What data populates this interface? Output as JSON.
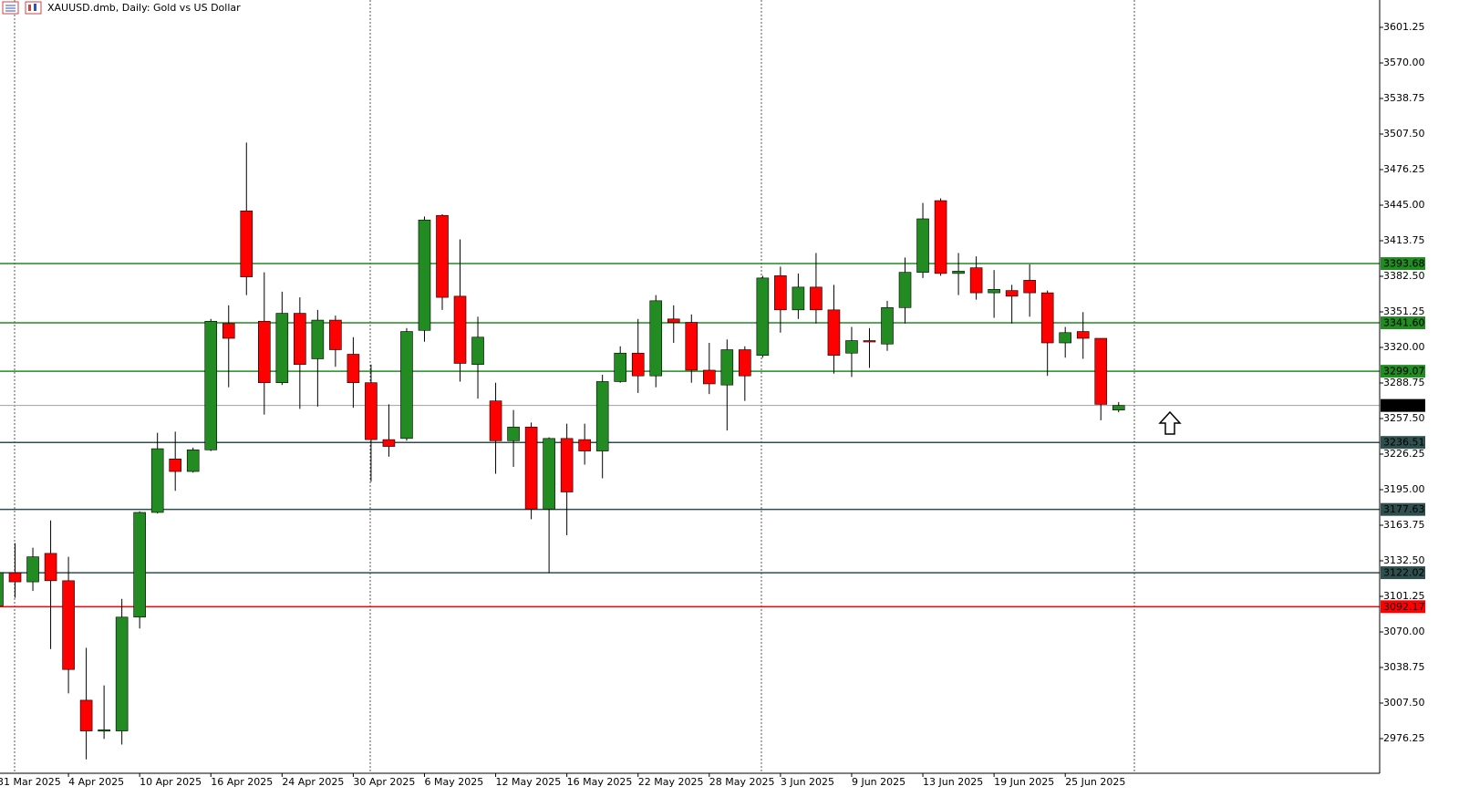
{
  "chart_data": {
    "type": "candlestick",
    "title": "XAUUSD.dmb, Daily:  Gold vs US Dollar",
    "categories": [
      "31 Mar 2025",
      null,
      null,
      null,
      "4 Apr 2025",
      null,
      null,
      null,
      "10 Apr 2025",
      null,
      null,
      null,
      "16 Apr 2025",
      null,
      null,
      null,
      "24 Apr 2025",
      null,
      null,
      null,
      "30 Apr 2025",
      null,
      null,
      null,
      "6 May 2025",
      null,
      null,
      null,
      "12 May 2025",
      null,
      null,
      null,
      "16 May 2025",
      null,
      null,
      null,
      "22 May 2025",
      null,
      null,
      null,
      "28 May 2025",
      null,
      null,
      null,
      "3 Jun 2025",
      null,
      null,
      null,
      "9 Jun 2025",
      null,
      null,
      null,
      "13 Jun 2025",
      null,
      null,
      null,
      "19 Jun 2025",
      null,
      null,
      null,
      "25 Jun 2025",
      null,
      null,
      null
    ],
    "open": [
      3093,
      3122,
      3114,
      3139,
      3115,
      3010,
      2983,
      2983,
      3083,
      3175,
      3222,
      3211,
      3230,
      3341,
      3440,
      3343,
      3289,
      3350,
      3310,
      3344,
      3314,
      3289,
      3239,
      3240,
      3335,
      3436,
      3365,
      3305,
      3273,
      3238,
      3250,
      3178,
      3240,
      3239,
      3229,
      3290,
      3315,
      3295,
      3345,
      3342,
      3300,
      3287,
      3318,
      3313,
      3383,
      3353,
      3373,
      3353,
      3315,
      3326,
      3323,
      3355,
      3386,
      3449,
      3385,
      3390,
      3368,
      3370,
      3379,
      3368,
      3324,
      3334,
      3328,
      3265
    ],
    "high": [
      3128,
      3148,
      3144,
      3168,
      3136,
      3056,
      3023,
      3099,
      3176,
      3245,
      3246,
      3232,
      3345,
      3357,
      3500,
      3386,
      3369,
      3364,
      3353,
      3348,
      3329,
      3305,
      3270,
      3337,
      3435,
      3437,
      3415,
      3347,
      3289,
      3265,
      3254,
      3241,
      3253,
      3253,
      3296,
      3321,
      3345,
      3366,
      3357,
      3349,
      3324,
      3327,
      3321,
      3383,
      3391,
      3385,
      3403,
      3375,
      3338,
      3337,
      3361,
      3399,
      3447,
      3451,
      3403,
      3400,
      3388,
      3375,
      3393,
      3370,
      3338,
      3351,
      3328,
      3272
    ],
    "low": [
      3085,
      3100,
      3106,
      3055,
      3016,
      2958,
      2976,
      2971,
      3073,
      3174,
      3194,
      3210,
      3229,
      3285,
      3366,
      3261,
      3287,
      3266,
      3268,
      3303,
      3267,
      3202,
      3224,
      3238,
      3325,
      3353,
      3290,
      3275,
      3209,
      3215,
      3169,
      3122,
      3155,
      3217,
      3205,
      3289,
      3280,
      3285,
      3324,
      3289,
      3279,
      3247,
      3273,
      3311,
      3333,
      3345,
      3341,
      3297,
      3294,
      3302,
      3317,
      3341,
      3381,
      3383,
      3366,
      3362,
      3346,
      3341,
      3347,
      3295,
      3311,
      3310,
      3256,
      3263
    ],
    "close": [
      3122,
      3114,
      3136,
      3115,
      3037,
      2983,
      2984,
      3083,
      3175,
      3231,
      3211,
      3230,
      3343,
      3328,
      3382,
      3289,
      3350,
      3305,
      3344,
      3318,
      3289,
      3239,
      3233,
      3334,
      3432,
      3364,
      3306,
      3329,
      3238,
      3250,
      3178,
      3240,
      3193,
      3229,
      3290,
      3315,
      3295,
      3361,
      3342,
      3300,
      3288,
      3318,
      3295,
      3381,
      3353,
      3373,
      3353,
      3313,
      3326,
      3325,
      3355,
      3386,
      3433,
      3385,
      3387,
      3368,
      3371,
      3365,
      3368,
      3324,
      3333,
      3328,
      3270,
      3269
    ],
    "up_color": "#228b22",
    "down_color": "#ff0000",
    "ylim": [
      2945.8,
      3625.3
    ],
    "yticks": [
      {
        "value": 3601.25,
        "label": "3601.25"
      },
      {
        "value": 3570,
        "label": "3570.00"
      },
      {
        "value": 3538.75,
        "label": "3538.75"
      },
      {
        "value": 3507.5,
        "label": "3507.50"
      },
      {
        "value": 3476.25,
        "label": "3476.25"
      },
      {
        "value": 3445,
        "label": "3445.00"
      },
      {
        "value": 3413.75,
        "label": "3413.75"
      },
      {
        "value": 3382.5,
        "label": "3382.50"
      },
      {
        "value": 3351.25,
        "label": "3351.25"
      },
      {
        "value": 3320,
        "label": "3320.00"
      },
      {
        "value": 3288.75,
        "label": "3288.75"
      },
      {
        "value": 3257.5,
        "label": "3257.50"
      },
      {
        "value": 3226.25,
        "label": "3226.25"
      },
      {
        "value": 3195,
        "label": "3195.00"
      },
      {
        "value": 3163.75,
        "label": "3163.75"
      },
      {
        "value": 3132.5,
        "label": "3132.50"
      },
      {
        "value": 3101.25,
        "label": "3101.25"
      },
      {
        "value": 3070,
        "label": "3070.00"
      },
      {
        "value": 3038.75,
        "label": "3038.75"
      },
      {
        "value": 3007.5,
        "label": "3007.50"
      },
      {
        "value": 2976.25,
        "label": "2976.25"
      }
    ],
    "hlines": [
      {
        "value": 3393.68,
        "color": "#228b22"
      },
      {
        "value": 3341.6,
        "label": "3341.60",
        "color": "#228b22"
      },
      {
        "value": 3299.07,
        "color": "#228b22"
      },
      {
        "value": 3269,
        "label": "3269.00",
        "color": "#000000"
      },
      {
        "value": 3236.51,
        "color": "#2f4f4f"
      },
      {
        "value": 3177.63,
        "color": "#2f4f4f"
      },
      {
        "value": 3122.02,
        "color": "#2f4f4f"
      },
      {
        "value": 3092.17,
        "color": "#ff0000"
      }
    ]
  }
}
